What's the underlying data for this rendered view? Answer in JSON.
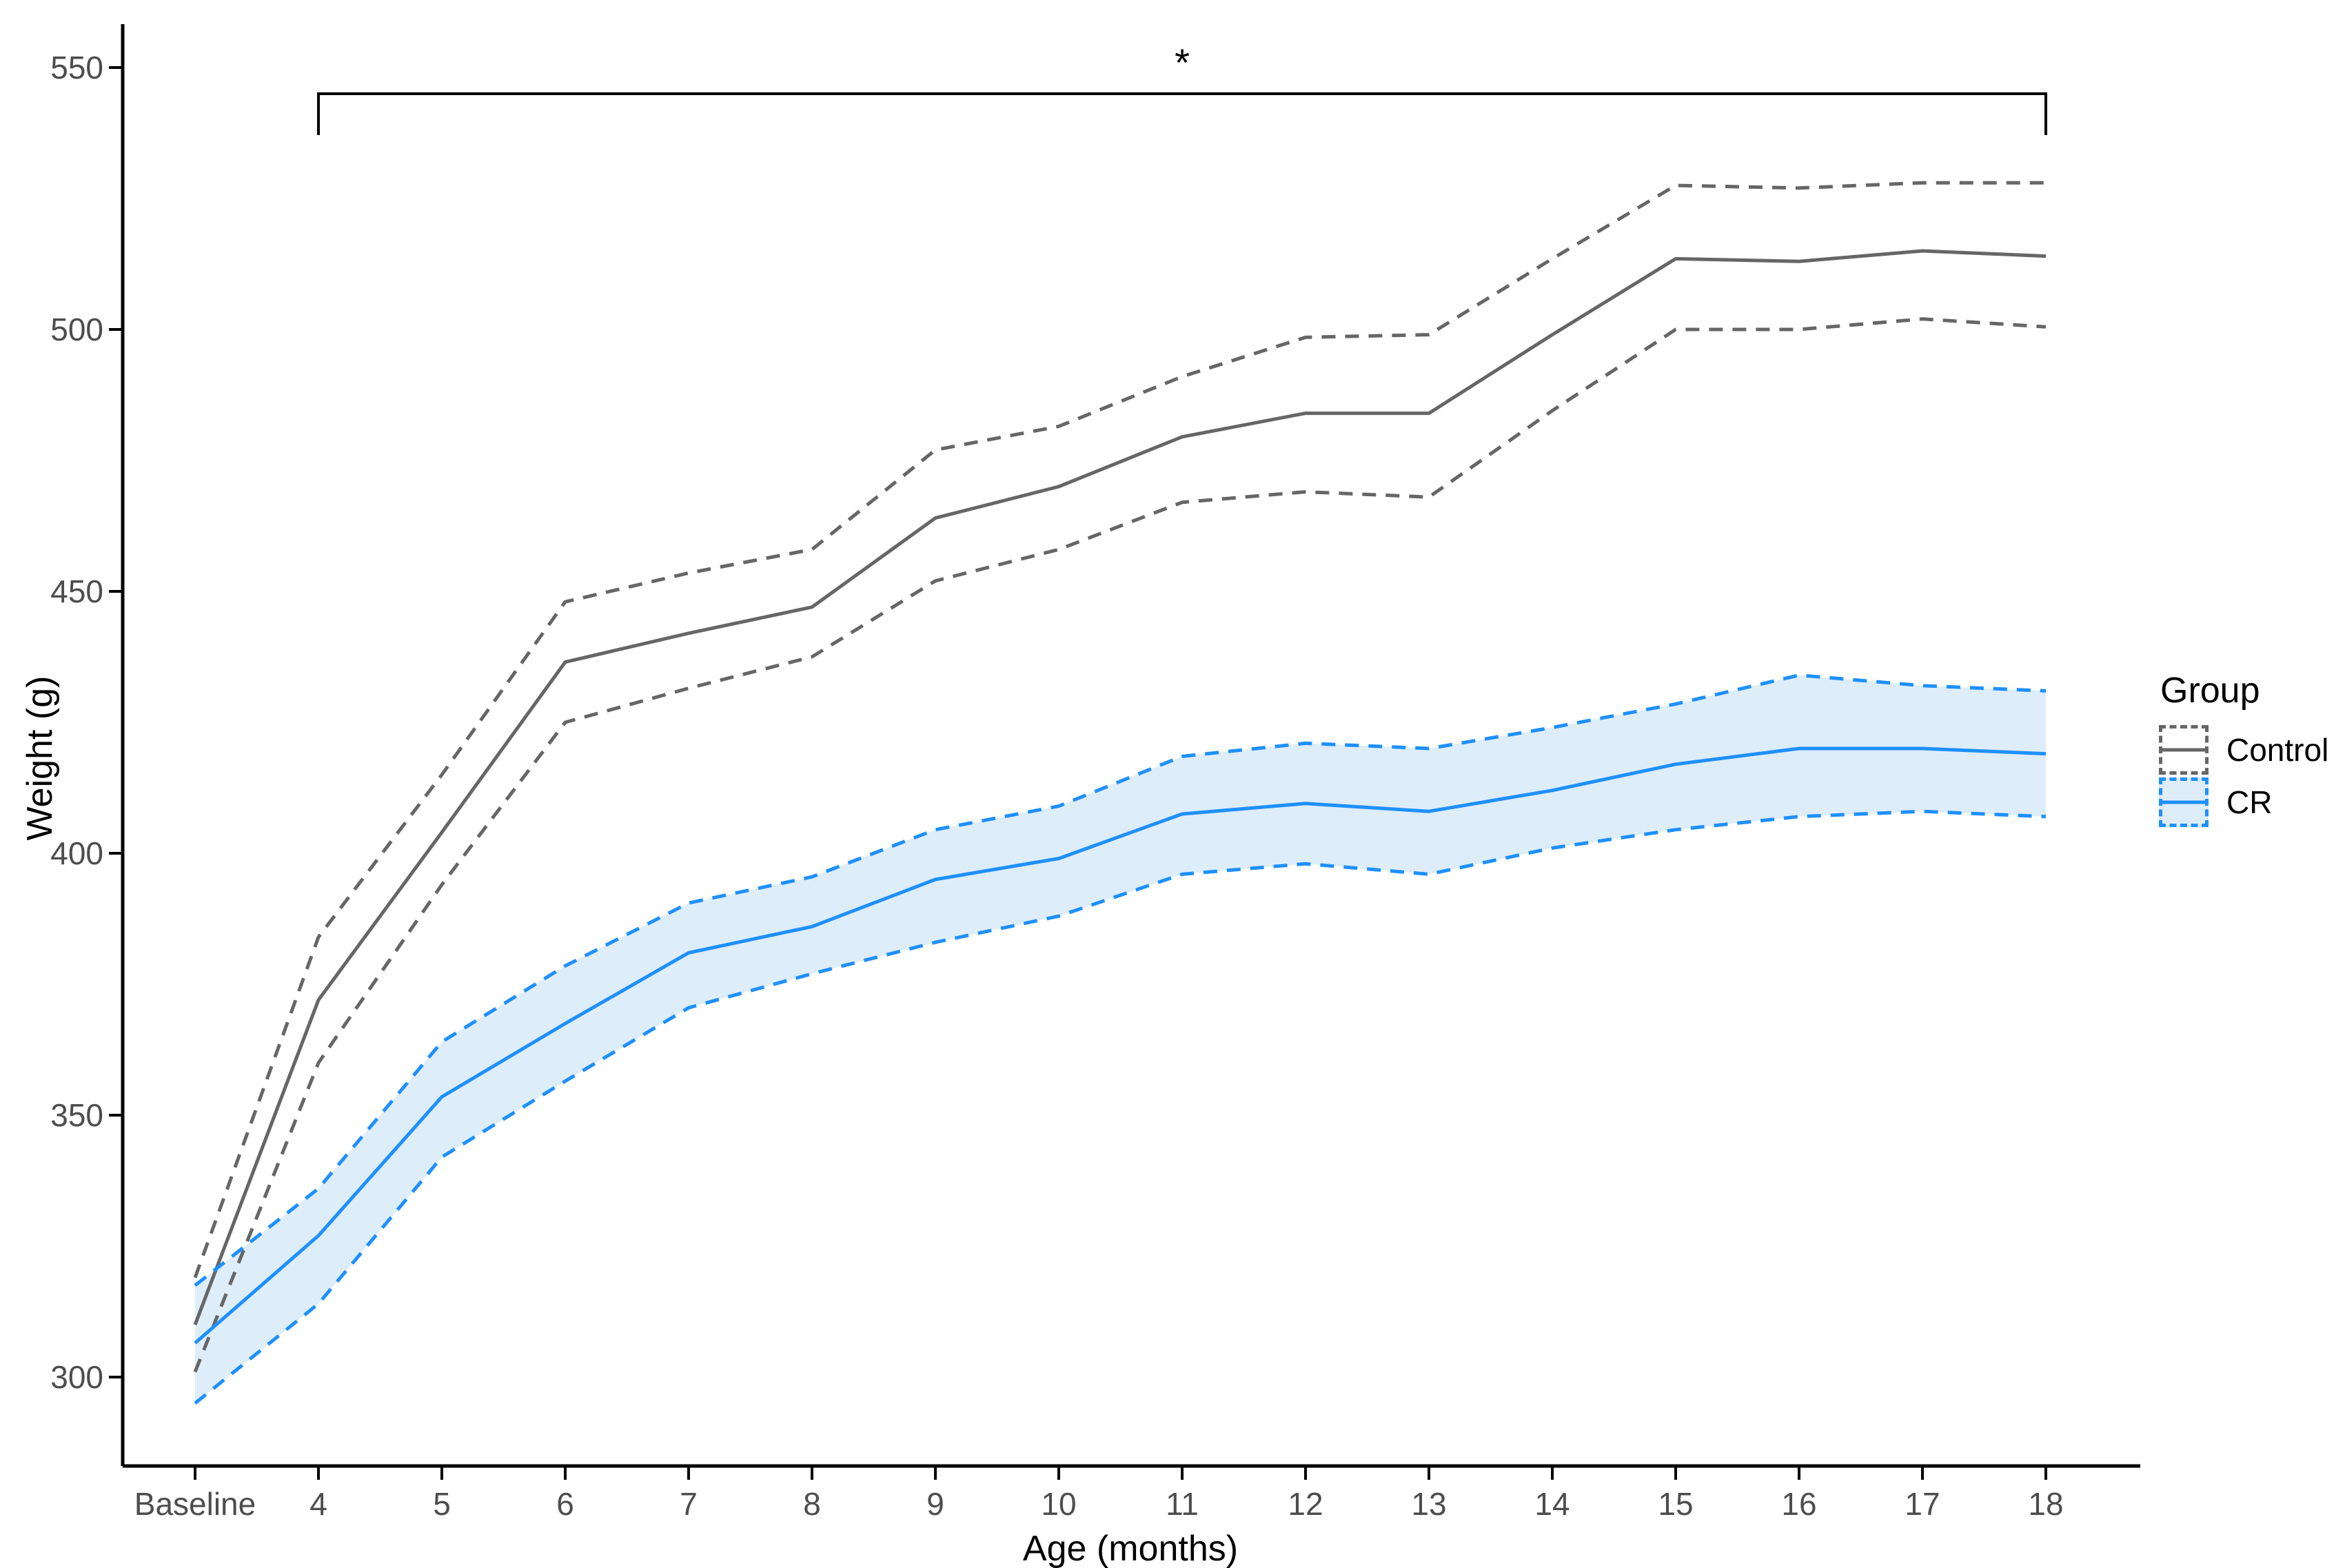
{
  "figure": {
    "background": "#FFFFFF"
  },
  "chart_data": {
    "type": "line",
    "title": "",
    "xlabel": "Age (months)",
    "ylabel": "Weight (g)",
    "categories": [
      "Baseline",
      "4",
      "5",
      "6",
      "7",
      "8",
      "9",
      "10",
      "11",
      "12",
      "13",
      "14",
      "15",
      "16",
      "17",
      "18"
    ],
    "y_ticks": [
      300,
      350,
      400,
      450,
      500,
      550
    ],
    "ylim": [
      283,
      560
    ],
    "grid": "off",
    "theme": "classic",
    "colors": {
      "control": "#666666",
      "cr": "#1E90FF",
      "cr_ribbon_fill": "#DEEDFA",
      "axis": "#000000",
      "tick_labels": "#4D4D4D"
    },
    "series": [
      {
        "name": "Control",
        "role": "mean",
        "style": "solid",
        "color": "#666666",
        "values": [
          310,
          372,
          404,
          436.5,
          442,
          447,
          464,
          470,
          479.5,
          484,
          484,
          499,
          513.5,
          513,
          515,
          514
        ]
      },
      {
        "name": "Control upper CI",
        "role": "ci-upper",
        "style": "dashed",
        "color": "#666666",
        "values": [
          319,
          384,
          415,
          448,
          453.5,
          458,
          477,
          481.5,
          491,
          498.5,
          499,
          513.5,
          527.5,
          527,
          528,
          528
        ]
      },
      {
        "name": "Control lower CI",
        "role": "ci-lower",
        "style": "dashed",
        "color": "#666666",
        "values": [
          301,
          360,
          394,
          425,
          431.5,
          437.5,
          452,
          458,
          467,
          469,
          468,
          484.5,
          500,
          500,
          502,
          500.5
        ]
      },
      {
        "name": "CR",
        "role": "mean",
        "style": "solid",
        "color": "#1E90FF",
        "values": [
          306.5,
          327,
          353.5,
          367.5,
          381,
          386,
          395,
          399,
          407.5,
          409.5,
          408,
          412,
          417,
          420,
          420,
          419
        ]
      },
      {
        "name": "CR upper CI",
        "role": "ci-upper",
        "style": "dashed",
        "color": "#1E90FF",
        "values": [
          317.5,
          336,
          364,
          378.5,
          390.5,
          395.5,
          404.5,
          409,
          418.5,
          421,
          420,
          424,
          428.5,
          434,
          432,
          431
        ]
      },
      {
        "name": "CR lower CI",
        "role": "ci-lower",
        "style": "dashed",
        "color": "#1E90FF",
        "values": [
          295,
          314,
          342,
          356.5,
          370.5,
          377,
          383,
          388,
          396,
          398,
          396,
          401,
          404.5,
          407,
          408,
          407
        ]
      }
    ],
    "ribbon": {
      "upper": "CR upper CI",
      "lower": "CR lower CI",
      "fill": "#DEEDFA"
    },
    "legend": {
      "title": "Group",
      "position": "right",
      "entries": [
        {
          "label": "Control",
          "color": "#666666",
          "fill": "#FFFFFF"
        },
        {
          "label": "CR",
          "color": "#1E90FF",
          "fill": "#DEEDFA"
        }
      ]
    },
    "annotation": {
      "symbol": "*",
      "x_from": "4",
      "x_to": "18",
      "y": 545
    }
  }
}
